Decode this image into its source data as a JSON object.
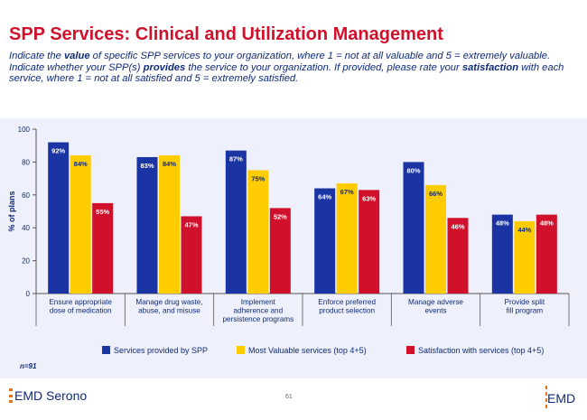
{
  "header": {
    "title": "SPP Services: Clinical and Utilization Management",
    "subtitle": [
      {
        "text": "Indicate the ",
        "bold": false
      },
      {
        "text": "value",
        "bold": true
      },
      {
        "text": " of specific SPP services to your organization, where 1 = not at all valuable and 5 = extremely valuable. Indicate whether your SPP(s) ",
        "bold": false
      },
      {
        "text": "provides",
        "bold": true
      },
      {
        "text": " the service to your organization. If provided, please rate your ",
        "bold": false
      },
      {
        "text": "satisfaction",
        "bold": true
      },
      {
        "text": " with each service, where 1 = not at all satisfied and 5 = extremely satisfied.",
        "bold": false
      }
    ]
  },
  "chart_data": {
    "type": "bar",
    "ylabel": "% of plans",
    "ylim": [
      0,
      100
    ],
    "yticks": [
      0,
      20,
      40,
      60,
      80,
      100
    ],
    "grid": false,
    "legend_position": "bottom",
    "categories": [
      [
        "Ensure appropriate",
        "dose of medication"
      ],
      [
        "Manage drug waste,",
        "abuse, and misuse"
      ],
      [
        "Implement",
        "adherence and",
        "persistence programs"
      ],
      [
        "Enforce preferred",
        "product selection"
      ],
      [
        "Manage adverse",
        "events"
      ],
      [
        "Provide split",
        "fill program"
      ]
    ],
    "series": [
      {
        "name": "Services provided by SPP",
        "color": "#1a34a3",
        "labelColor": "#ffffff",
        "values": [
          92,
          83,
          87,
          64,
          80,
          48
        ]
      },
      {
        "name": "Most Valuable services (top 4+5)",
        "color": "#ffcc00",
        "labelColor": "#0f2a78",
        "values": [
          84,
          84,
          75,
          67,
          66,
          44
        ]
      },
      {
        "name": "Satisfaction with services (top 4+5)",
        "color": "#d0112b",
        "labelColor": "#ffffff",
        "values": [
          55,
          47,
          52,
          63,
          46,
          48
        ]
      }
    ],
    "value_suffix": "%"
  },
  "footnote": "n=91",
  "footer": {
    "left_logo": "EMD Serono",
    "page_number": "61",
    "right_logo": "EMD"
  }
}
